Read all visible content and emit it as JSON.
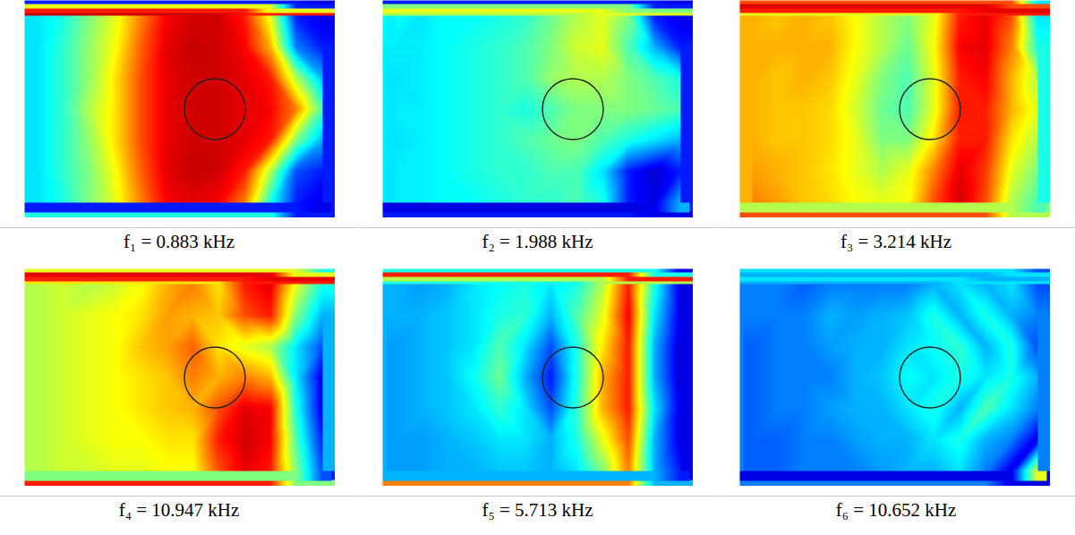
{
  "chart_data": [
    {
      "type": "heatmap",
      "title": "f₁ = 0.883 kHz",
      "color": "jet",
      "zlim": [
        0,
        1
      ],
      "tick_labels": false,
      "cells": [
        [
          0.35,
          0.4,
          0.5,
          0.6,
          0.75,
          0.88,
          0.92,
          0.92,
          0.85,
          0.6,
          0.15,
          0.1
        ],
        [
          0.35,
          0.42,
          0.52,
          0.62,
          0.78,
          0.9,
          0.93,
          0.92,
          0.88,
          0.7,
          0.25,
          0.15
        ],
        [
          0.35,
          0.42,
          0.52,
          0.65,
          0.8,
          0.9,
          0.92,
          0.92,
          0.9,
          0.85,
          0.55,
          0.3
        ],
        [
          0.35,
          0.42,
          0.55,
          0.65,
          0.8,
          0.9,
          0.92,
          0.92,
          0.9,
          0.88,
          0.75,
          0.45
        ],
        [
          0.35,
          0.42,
          0.52,
          0.65,
          0.8,
          0.9,
          0.92,
          0.92,
          0.9,
          0.85,
          0.5,
          0.3
        ],
        [
          0.35,
          0.42,
          0.5,
          0.62,
          0.78,
          0.9,
          0.93,
          0.92,
          0.85,
          0.55,
          0.2,
          0.15
        ],
        [
          0.35,
          0.4,
          0.5,
          0.6,
          0.75,
          0.88,
          0.9,
          0.88,
          0.75,
          0.4,
          0.15,
          0.1
        ]
      ]
    },
    {
      "type": "heatmap",
      "title": "f₂ = 1.988 kHz",
      "color": "jet",
      "zlim": [
        0,
        1
      ],
      "tick_labels": false,
      "cells": [
        [
          0.38,
          0.35,
          0.38,
          0.38,
          0.4,
          0.42,
          0.48,
          0.55,
          0.6,
          0.5,
          0.15,
          0.1
        ],
        [
          0.36,
          0.36,
          0.38,
          0.4,
          0.42,
          0.45,
          0.5,
          0.58,
          0.6,
          0.45,
          0.3,
          0.15
        ],
        [
          0.35,
          0.36,
          0.38,
          0.4,
          0.42,
          0.45,
          0.52,
          0.55,
          0.55,
          0.5,
          0.45,
          0.4
        ],
        [
          0.36,
          0.36,
          0.38,
          0.4,
          0.42,
          0.4,
          0.45,
          0.5,
          0.5,
          0.5,
          0.48,
          0.45
        ],
        [
          0.35,
          0.36,
          0.38,
          0.4,
          0.42,
          0.45,
          0.48,
          0.5,
          0.45,
          0.4,
          0.35,
          0.3
        ],
        [
          0.36,
          0.36,
          0.38,
          0.4,
          0.42,
          0.42,
          0.45,
          0.45,
          0.35,
          0.15,
          0.08,
          0.15
        ],
        [
          0.36,
          0.36,
          0.38,
          0.38,
          0.4,
          0.42,
          0.42,
          0.45,
          0.4,
          0.15,
          0.1,
          0.3
        ]
      ]
    },
    {
      "type": "heatmap",
      "title": "f₃ = 3.214 kHz",
      "color": "jet",
      "zlim": [
        0,
        1
      ],
      "tick_labels": false,
      "cells": [
        [
          0.7,
          0.68,
          0.7,
          0.68,
          0.62,
          0.55,
          0.5,
          0.6,
          0.85,
          0.9,
          0.8,
          0.35
        ],
        [
          0.7,
          0.7,
          0.7,
          0.7,
          0.62,
          0.55,
          0.48,
          0.62,
          0.88,
          0.9,
          0.75,
          0.4
        ],
        [
          0.7,
          0.68,
          0.7,
          0.68,
          0.6,
          0.5,
          0.45,
          0.6,
          0.85,
          0.88,
          0.7,
          0.55
        ],
        [
          0.7,
          0.68,
          0.68,
          0.66,
          0.58,
          0.48,
          0.45,
          0.6,
          0.85,
          0.85,
          0.7,
          0.6
        ],
        [
          0.7,
          0.68,
          0.68,
          0.66,
          0.6,
          0.5,
          0.5,
          0.65,
          0.85,
          0.85,
          0.65,
          0.55
        ],
        [
          0.72,
          0.7,
          0.68,
          0.65,
          0.6,
          0.55,
          0.6,
          0.75,
          0.9,
          0.82,
          0.6,
          0.5
        ],
        [
          0.75,
          0.72,
          0.68,
          0.66,
          0.62,
          0.6,
          0.62,
          0.8,
          0.92,
          0.8,
          0.55,
          0.45
        ]
      ]
    },
    {
      "type": "heatmap",
      "title": "f₄ = 10.947 kHz",
      "color": "jet",
      "zlim": [
        0,
        1
      ],
      "tick_labels": false,
      "cells": [
        [
          0.55,
          0.58,
          0.55,
          0.58,
          0.62,
          0.7,
          0.75,
          0.65,
          0.85,
          0.9,
          0.6,
          0.4
        ],
        [
          0.55,
          0.58,
          0.6,
          0.62,
          0.65,
          0.72,
          0.7,
          0.68,
          0.8,
          0.85,
          0.5,
          0.3
        ],
        [
          0.55,
          0.58,
          0.6,
          0.62,
          0.68,
          0.72,
          0.78,
          0.65,
          0.6,
          0.55,
          0.35,
          0.2
        ],
        [
          0.55,
          0.58,
          0.6,
          0.62,
          0.65,
          0.68,
          0.75,
          0.7,
          0.75,
          0.7,
          0.35,
          0.1
        ],
        [
          0.55,
          0.58,
          0.6,
          0.62,
          0.65,
          0.68,
          0.7,
          0.8,
          0.9,
          0.88,
          0.4,
          0.1
        ],
        [
          0.55,
          0.58,
          0.6,
          0.62,
          0.62,
          0.65,
          0.65,
          0.85,
          0.92,
          0.88,
          0.45,
          0.15
        ],
        [
          0.55,
          0.58,
          0.58,
          0.6,
          0.6,
          0.62,
          0.62,
          0.8,
          0.9,
          0.85,
          0.5,
          0.2
        ]
      ]
    },
    {
      "type": "heatmap",
      "title": "f₅ = 5.713 kHz",
      "color": "jet",
      "zlim": [
        0,
        1
      ],
      "tick_labels": false,
      "cells": [
        [
          0.3,
          0.28,
          0.3,
          0.35,
          0.38,
          0.4,
          0.35,
          0.4,
          0.55,
          0.85,
          0.4,
          0.1
        ],
        [
          0.3,
          0.3,
          0.32,
          0.35,
          0.4,
          0.42,
          0.3,
          0.45,
          0.6,
          0.88,
          0.35,
          0.1
        ],
        [
          0.28,
          0.3,
          0.32,
          0.35,
          0.45,
          0.35,
          0.2,
          0.4,
          0.65,
          0.85,
          0.3,
          0.08
        ],
        [
          0.28,
          0.3,
          0.32,
          0.38,
          0.48,
          0.3,
          0.15,
          0.4,
          0.7,
          0.85,
          0.3,
          0.08
        ],
        [
          0.28,
          0.3,
          0.32,
          0.35,
          0.42,
          0.35,
          0.2,
          0.42,
          0.7,
          0.85,
          0.35,
          0.1
        ],
        [
          0.28,
          0.28,
          0.3,
          0.32,
          0.35,
          0.35,
          0.3,
          0.4,
          0.6,
          0.8,
          0.3,
          0.1
        ],
        [
          0.28,
          0.28,
          0.3,
          0.3,
          0.32,
          0.32,
          0.3,
          0.35,
          0.5,
          0.75,
          0.3,
          0.15
        ]
      ]
    },
    {
      "type": "heatmap",
      "title": "f₆ = 10.652 kHz",
      "color": "jet",
      "zlim": [
        0,
        1
      ],
      "tick_labels": false,
      "cells": [
        [
          0.25,
          0.25,
          0.22,
          0.25,
          0.25,
          0.25,
          0.25,
          0.3,
          0.35,
          0.3,
          0.35,
          0.2
        ],
        [
          0.25,
          0.25,
          0.25,
          0.3,
          0.28,
          0.3,
          0.32,
          0.4,
          0.3,
          0.4,
          0.3,
          0.25
        ],
        [
          0.22,
          0.25,
          0.25,
          0.28,
          0.3,
          0.3,
          0.35,
          0.38,
          0.42,
          0.3,
          0.4,
          0.2
        ],
        [
          0.22,
          0.25,
          0.25,
          0.25,
          0.3,
          0.32,
          0.38,
          0.35,
          0.4,
          0.35,
          0.4,
          0.3
        ],
        [
          0.22,
          0.25,
          0.25,
          0.28,
          0.3,
          0.3,
          0.35,
          0.4,
          0.3,
          0.45,
          0.35,
          0.25
        ],
        [
          0.22,
          0.22,
          0.25,
          0.25,
          0.28,
          0.3,
          0.3,
          0.35,
          0.4,
          0.3,
          0.25,
          0.1
        ],
        [
          0.22,
          0.22,
          0.25,
          0.25,
          0.25,
          0.28,
          0.3,
          0.3,
          0.35,
          0.25,
          0.1,
          0.6
        ]
      ]
    }
  ]
}
